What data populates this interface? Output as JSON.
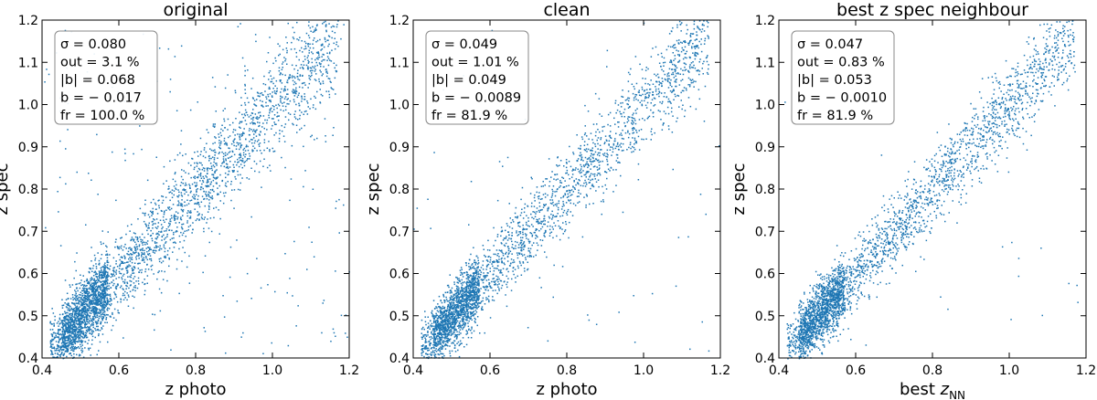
{
  "chart_data": [
    {
      "type": "scatter",
      "title": "original",
      "xlabel": "z photo",
      "ylabel": "z spec",
      "xlim": [
        0.4,
        1.2
      ],
      "ylim": [
        0.4,
        1.2
      ],
      "xticks": [
        "0.4",
        "0.6",
        "0.8",
        "1.0",
        "1.2"
      ],
      "yticks": [
        "0.4",
        "0.5",
        "0.6",
        "0.7",
        "0.8",
        "0.9",
        "1.0",
        "1.1",
        "1.2"
      ],
      "color": "#1f77b4",
      "stats": [
        "σ = 0.080",
        "out = 3.1 %",
        "|b| = 0.068",
        "b = − 0.017",
        "fr = 100.0 %"
      ],
      "seed": 11,
      "n_points": 3600,
      "scatter_sigma": 0.045,
      "outlier_fraction": 0.06
    },
    {
      "type": "scatter",
      "title": "clean",
      "xlabel": "z photo",
      "ylabel": "z spec",
      "xlim": [
        0.4,
        1.2
      ],
      "ylim": [
        0.4,
        1.2
      ],
      "xticks": [
        "0.4",
        "0.6",
        "0.8",
        "1.0",
        "1.2"
      ],
      "yticks": [
        "0.4",
        "0.5",
        "0.6",
        "0.7",
        "0.8",
        "0.9",
        "1.0",
        "1.1",
        "1.2"
      ],
      "color": "#1f77b4",
      "stats": [
        "σ = 0.049",
        "out = 1.01 %",
        "|b| = 0.049",
        "b = − 0.0089",
        "fr = 81.9 %"
      ],
      "seed": 23,
      "n_points": 3100,
      "scatter_sigma": 0.04,
      "outlier_fraction": 0.02
    },
    {
      "type": "scatter",
      "title": "best z spec neighbour",
      "xlabel": "best z",
      "xlabel_sub": "NN",
      "ylabel": "z spec",
      "xlim": [
        0.4,
        1.2
      ],
      "ylim": [
        0.4,
        1.2
      ],
      "xticks": [
        "0.4",
        "0.6",
        "0.8",
        "1.0",
        "1.2"
      ],
      "yticks": [
        "0.4",
        "0.5",
        "0.6",
        "0.7",
        "0.8",
        "0.9",
        "1.0",
        "1.1",
        "1.2"
      ],
      "color": "#1f77b4",
      "stats": [
        "σ = 0.047",
        "out = 0.83 %",
        "|b| = 0.053",
        "b = − 0.0010",
        "fr = 81.9 %"
      ],
      "seed": 37,
      "n_points": 3100,
      "scatter_sigma": 0.04,
      "outlier_fraction": 0.015
    }
  ]
}
